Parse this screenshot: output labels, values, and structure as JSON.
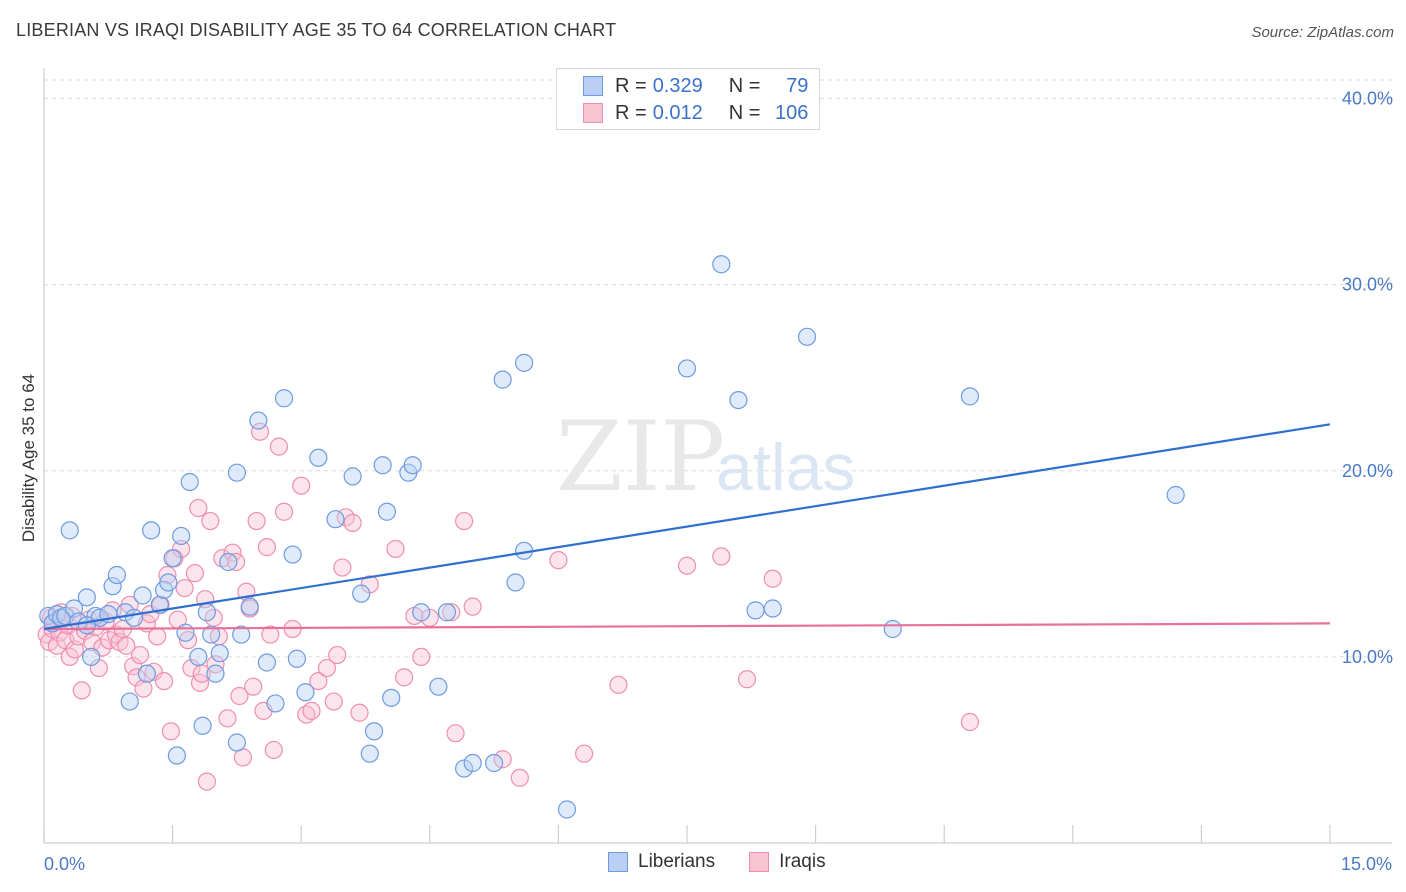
{
  "title": "LIBERIAN VS IRAQI DISABILITY AGE 35 TO 64 CORRELATION CHART",
  "source": "Source: ZipAtlas.com",
  "watermark": {
    "zip": "ZIP",
    "atlas": "atlas"
  },
  "legend": {
    "series": [
      {
        "r_label": "R =",
        "r_value": "0.329",
        "n_label": "N =",
        "n_value": "79"
      },
      {
        "r_label": "R =",
        "r_value": "0.012",
        "n_label": "N =",
        "n_value": "106"
      }
    ]
  },
  "bottom_legend": [
    "Liberians",
    "Iraqis"
  ],
  "colors": {
    "blue_fill": "#b9d0f4",
    "blue_stroke": "#6f9be0",
    "blue_line": "#2f6fcf",
    "pink_fill": "#f9c4d4",
    "pink_stroke": "#ee8fae",
    "pink_line": "#e8709a",
    "tick_text": "#4a79c6",
    "grid": "#dcdcdc"
  },
  "chart_data": {
    "type": "scatter",
    "title": "LIBERIAN VS IRAQI DISABILITY AGE 35 TO 64 CORRELATION CHART",
    "xlabel": "",
    "ylabel": "Disability Age 35 to 64",
    "xlim": [
      0,
      15
    ],
    "ylim": [
      0,
      41
    ],
    "x_tick_labels": [
      {
        "value": 0,
        "label": "0.0%"
      },
      {
        "value": 15,
        "label": "15.0%"
      }
    ],
    "y_tick_labels": [
      {
        "value": 10,
        "label": "10.0%"
      },
      {
        "value": 20,
        "label": "20.0%"
      },
      {
        "value": 30,
        "label": "30.0%"
      },
      {
        "value": 40,
        "label": "40.0%"
      }
    ],
    "series": [
      {
        "name": "Liberians",
        "trendline": {
          "x": [
            0,
            15
          ],
          "y": [
            11.5,
            22.5
          ]
        },
        "points": [
          [
            0.05,
            12.2
          ],
          [
            0.1,
            11.8
          ],
          [
            0.15,
            12.3
          ],
          [
            0.2,
            12.1
          ],
          [
            0.25,
            12.2
          ],
          [
            0.3,
            16.8
          ],
          [
            0.35,
            12.6
          ],
          [
            0.4,
            11.9
          ],
          [
            0.5,
            13.2
          ],
          [
            0.55,
            10.0
          ],
          [
            0.6,
            12.2
          ],
          [
            0.65,
            12.1
          ],
          [
            0.75,
            12.3
          ],
          [
            0.8,
            13.8
          ],
          [
            0.85,
            14.4
          ],
          [
            0.95,
            12.4
          ],
          [
            1.0,
            7.6
          ],
          [
            1.05,
            12.1
          ],
          [
            1.15,
            13.3
          ],
          [
            1.2,
            9.1
          ],
          [
            1.25,
            16.8
          ],
          [
            1.35,
            12.8
          ],
          [
            1.4,
            13.6
          ],
          [
            1.45,
            14.0
          ],
          [
            1.5,
            15.3
          ],
          [
            1.55,
            4.7
          ],
          [
            1.6,
            16.5
          ],
          [
            1.65,
            11.3
          ],
          [
            1.7,
            19.4
          ],
          [
            1.8,
            10.0
          ],
          [
            1.85,
            6.3
          ],
          [
            1.9,
            12.4
          ],
          [
            1.95,
            11.2
          ],
          [
            2.0,
            9.1
          ],
          [
            2.05,
            10.2
          ],
          [
            2.15,
            15.1
          ],
          [
            2.25,
            19.9
          ],
          [
            2.25,
            5.4
          ],
          [
            2.3,
            11.2
          ],
          [
            2.4,
            12.7
          ],
          [
            2.5,
            22.7
          ],
          [
            2.6,
            9.7
          ],
          [
            2.7,
            7.5
          ],
          [
            2.8,
            23.9
          ],
          [
            2.9,
            15.5
          ],
          [
            2.95,
            9.9
          ],
          [
            3.05,
            8.1
          ],
          [
            3.2,
            20.7
          ],
          [
            3.4,
            17.4
          ],
          [
            3.6,
            19.7
          ],
          [
            3.7,
            13.4
          ],
          [
            3.8,
            4.8
          ],
          [
            3.85,
            6.0
          ],
          [
            3.95,
            20.3
          ],
          [
            4.0,
            17.8
          ],
          [
            4.05,
            7.8
          ],
          [
            4.25,
            19.9
          ],
          [
            4.3,
            20.3
          ],
          [
            4.4,
            12.4
          ],
          [
            4.6,
            8.4
          ],
          [
            4.7,
            12.4
          ],
          [
            4.9,
            4.0
          ],
          [
            5.0,
            4.3
          ],
          [
            5.25,
            4.3
          ],
          [
            5.35,
            24.9
          ],
          [
            5.5,
            14.0
          ],
          [
            5.6,
            25.8
          ],
          [
            5.6,
            15.7
          ],
          [
            6.1,
            1.8
          ],
          [
            7.5,
            25.5
          ],
          [
            7.9,
            31.1
          ],
          [
            8.1,
            23.8
          ],
          [
            8.3,
            12.5
          ],
          [
            8.5,
            12.6
          ],
          [
            8.9,
            27.2
          ],
          [
            9.9,
            11.5
          ],
          [
            10.8,
            24.0
          ],
          [
            13.2,
            18.7
          ],
          [
            0.5,
            11.7
          ]
        ]
      },
      {
        "name": "Iraqis",
        "trendline": {
          "x": [
            0,
            15
          ],
          "y": [
            11.5,
            11.8
          ]
        },
        "points": [
          [
            0.03,
            11.2
          ],
          [
            0.06,
            10.8
          ],
          [
            0.08,
            12.1
          ],
          [
            0.1,
            11.5
          ],
          [
            0.12,
            11.9
          ],
          [
            0.15,
            10.6
          ],
          [
            0.18,
            11.3
          ],
          [
            0.2,
            12.4
          ],
          [
            0.25,
            10.9
          ],
          [
            0.28,
            11.7
          ],
          [
            0.3,
            10.0
          ],
          [
            0.33,
            12.2
          ],
          [
            0.36,
            10.4
          ],
          [
            0.4,
            11.1
          ],
          [
            0.44,
            8.2
          ],
          [
            0.48,
            11.4
          ],
          [
            0.52,
            12.0
          ],
          [
            0.56,
            10.8
          ],
          [
            0.6,
            11.6
          ],
          [
            0.64,
            9.4
          ],
          [
            0.68,
            10.5
          ],
          [
            0.72,
            11.9
          ],
          [
            0.76,
            10.9
          ],
          [
            0.8,
            12.5
          ],
          [
            0.84,
            11.2
          ],
          [
            0.88,
            10.8
          ],
          [
            0.92,
            11.5
          ],
          [
            0.96,
            10.6
          ],
          [
            1.0,
            12.8
          ],
          [
            1.04,
            9.5
          ],
          [
            1.08,
            8.9
          ],
          [
            1.12,
            10.1
          ],
          [
            1.16,
            8.3
          ],
          [
            1.2,
            11.8
          ],
          [
            1.24,
            12.3
          ],
          [
            1.28,
            9.2
          ],
          [
            1.32,
            11.1
          ],
          [
            1.36,
            12.8
          ],
          [
            1.4,
            8.7
          ],
          [
            1.44,
            14.4
          ],
          [
            1.48,
            6.0
          ],
          [
            1.52,
            15.3
          ],
          [
            1.56,
            12.0
          ],
          [
            1.6,
            15.8
          ],
          [
            1.64,
            13.7
          ],
          [
            1.68,
            10.9
          ],
          [
            1.72,
            9.4
          ],
          [
            1.76,
            14.5
          ],
          [
            1.8,
            18.0
          ],
          [
            1.82,
            8.6
          ],
          [
            1.84,
            9.1
          ],
          [
            1.88,
            13.1
          ],
          [
            1.9,
            3.3
          ],
          [
            1.94,
            17.3
          ],
          [
            1.98,
            12.1
          ],
          [
            2.0,
            9.6
          ],
          [
            2.04,
            11.1
          ],
          [
            2.08,
            15.3
          ],
          [
            2.14,
            6.7
          ],
          [
            2.2,
            15.6
          ],
          [
            2.24,
            15.1
          ],
          [
            2.28,
            7.9
          ],
          [
            2.32,
            4.6
          ],
          [
            2.36,
            13.5
          ],
          [
            2.4,
            12.6
          ],
          [
            2.44,
            8.4
          ],
          [
            2.48,
            17.3
          ],
          [
            2.52,
            22.1
          ],
          [
            2.56,
            7.1
          ],
          [
            2.6,
            15.9
          ],
          [
            2.64,
            11.2
          ],
          [
            2.68,
            5.0
          ],
          [
            2.74,
            21.3
          ],
          [
            2.8,
            17.8
          ],
          [
            2.9,
            11.5
          ],
          [
            3.0,
            19.2
          ],
          [
            3.06,
            6.9
          ],
          [
            3.12,
            7.1
          ],
          [
            3.2,
            8.7
          ],
          [
            3.3,
            9.4
          ],
          [
            3.38,
            7.6
          ],
          [
            3.42,
            10.1
          ],
          [
            3.48,
            14.8
          ],
          [
            3.52,
            17.5
          ],
          [
            3.6,
            17.2
          ],
          [
            3.68,
            7.0
          ],
          [
            3.8,
            13.9
          ],
          [
            4.1,
            15.8
          ],
          [
            4.2,
            8.9
          ],
          [
            4.32,
            12.2
          ],
          [
            4.4,
            10.0
          ],
          [
            4.5,
            12.1
          ],
          [
            4.75,
            12.4
          ],
          [
            4.8,
            5.9
          ],
          [
            4.9,
            17.3
          ],
          [
            5.0,
            12.7
          ],
          [
            5.35,
            4.5
          ],
          [
            5.55,
            3.5
          ],
          [
            6.0,
            15.2
          ],
          [
            6.3,
            4.8
          ],
          [
            6.7,
            8.5
          ],
          [
            7.5,
            14.9
          ],
          [
            7.9,
            15.4
          ],
          [
            8.2,
            8.8
          ],
          [
            8.5,
            14.2
          ],
          [
            10.8,
            6.5
          ]
        ]
      }
    ]
  }
}
